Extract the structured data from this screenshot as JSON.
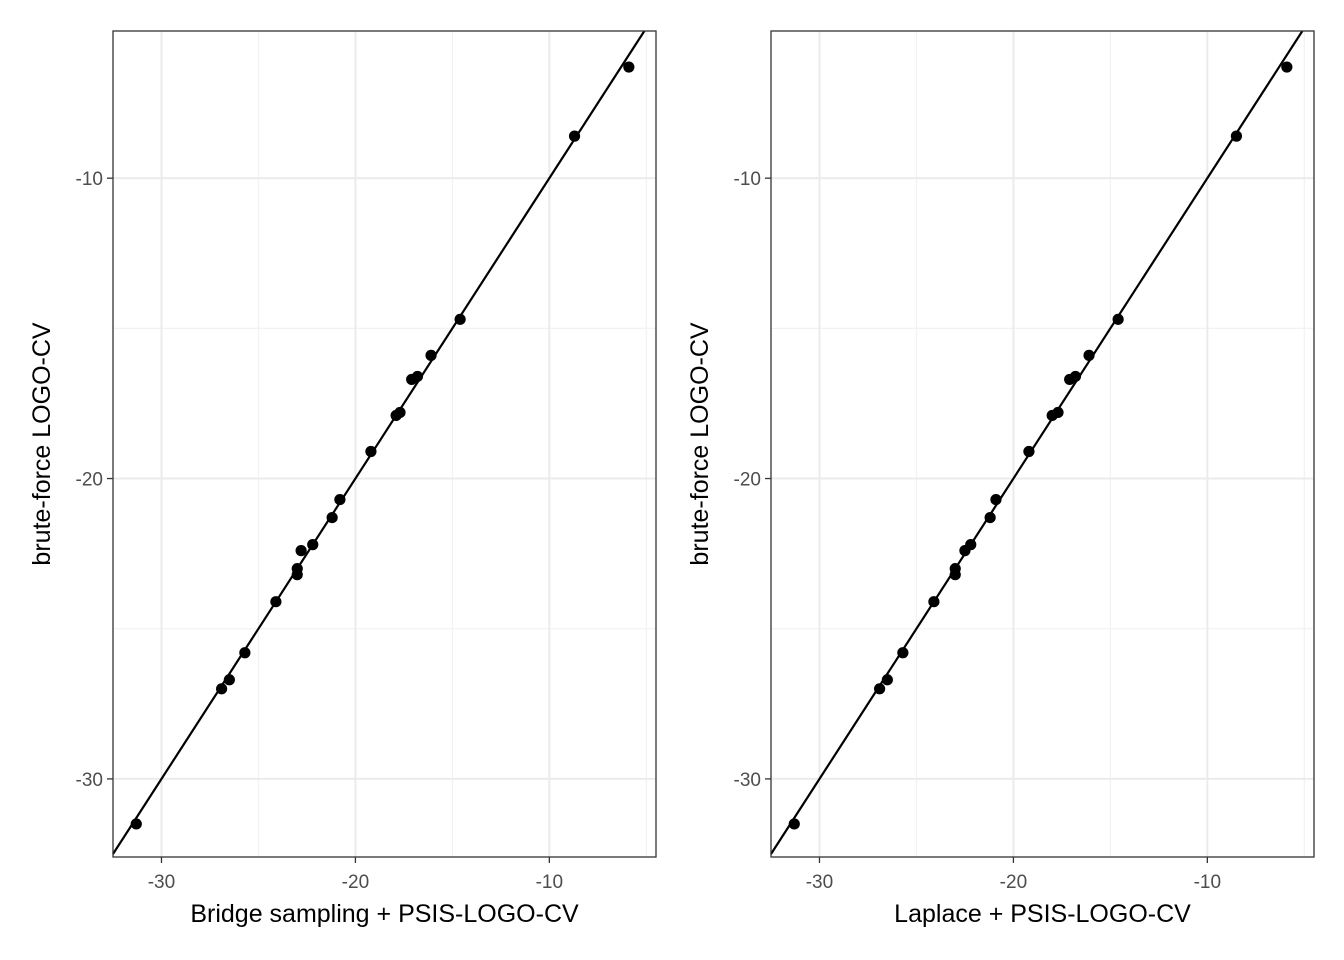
{
  "chart_data": [
    {
      "type": "scatter",
      "xlabel": "Bridge sampling + PSIS-LOGO-CV",
      "ylabel": "brute-force LOGO-CV",
      "xlim": [
        -32.5,
        -4.5
      ],
      "ylim": [
        -32.6,
        -5.1
      ],
      "x_ticks": [
        -30,
        -20,
        -10
      ],
      "y_ticks": [
        -10,
        -20,
        -30
      ],
      "x_tick_labels": [
        "-30",
        "-20",
        "-10"
      ],
      "y_tick_labels": [
        "-10",
        "-20",
        "-30"
      ],
      "grid": true,
      "reference_line": {
        "slope": 1,
        "intercept": 0
      },
      "series": [
        {
          "x": [
            -31.3,
            -26.9,
            -26.5,
            -25.7,
            -24.1,
            -23.0,
            -23.0,
            -22.8,
            -22.2,
            -21.2,
            -20.8,
            -19.2,
            -17.9,
            -17.7,
            -17.1,
            -16.8,
            -16.1,
            -14.6,
            -8.7,
            -5.9
          ],
          "y": [
            -31.5,
            -27.0,
            -26.7,
            -25.8,
            -24.1,
            -23.0,
            -23.2,
            -22.4,
            -22.2,
            -21.3,
            -20.7,
            -19.1,
            -17.9,
            -17.8,
            -16.7,
            -16.6,
            -15.9,
            -14.7,
            -8.6,
            -6.3
          ]
        }
      ]
    },
    {
      "type": "scatter",
      "xlabel": "Laplace + PSIS-LOGO-CV",
      "ylabel": "brute-force LOGO-CV",
      "xlim": [
        -32.5,
        -4.5
      ],
      "ylim": [
        -32.6,
        -5.1
      ],
      "x_ticks": [
        -30,
        -20,
        -10
      ],
      "y_ticks": [
        -10,
        -20,
        -30
      ],
      "x_tick_labels": [
        "-30",
        "-20",
        "-10"
      ],
      "y_tick_labels": [
        "-10",
        "-20",
        "-30"
      ],
      "grid": true,
      "reference_line": {
        "slope": 1,
        "intercept": 0
      },
      "series": [
        {
          "x": [
            -31.3,
            -26.9,
            -26.5,
            -25.7,
            -24.1,
            -23.0,
            -23.0,
            -22.5,
            -22.2,
            -21.2,
            -20.9,
            -19.2,
            -18.0,
            -17.7,
            -17.1,
            -16.8,
            -16.1,
            -14.6,
            -8.5,
            -5.9
          ],
          "y": [
            -31.5,
            -27.0,
            -26.7,
            -25.8,
            -24.1,
            -23.0,
            -23.2,
            -22.4,
            -22.2,
            -21.3,
            -20.7,
            -19.1,
            -17.9,
            -17.8,
            -16.7,
            -16.6,
            -15.9,
            -14.7,
            -8.6,
            -6.3
          ]
        }
      ]
    }
  ]
}
